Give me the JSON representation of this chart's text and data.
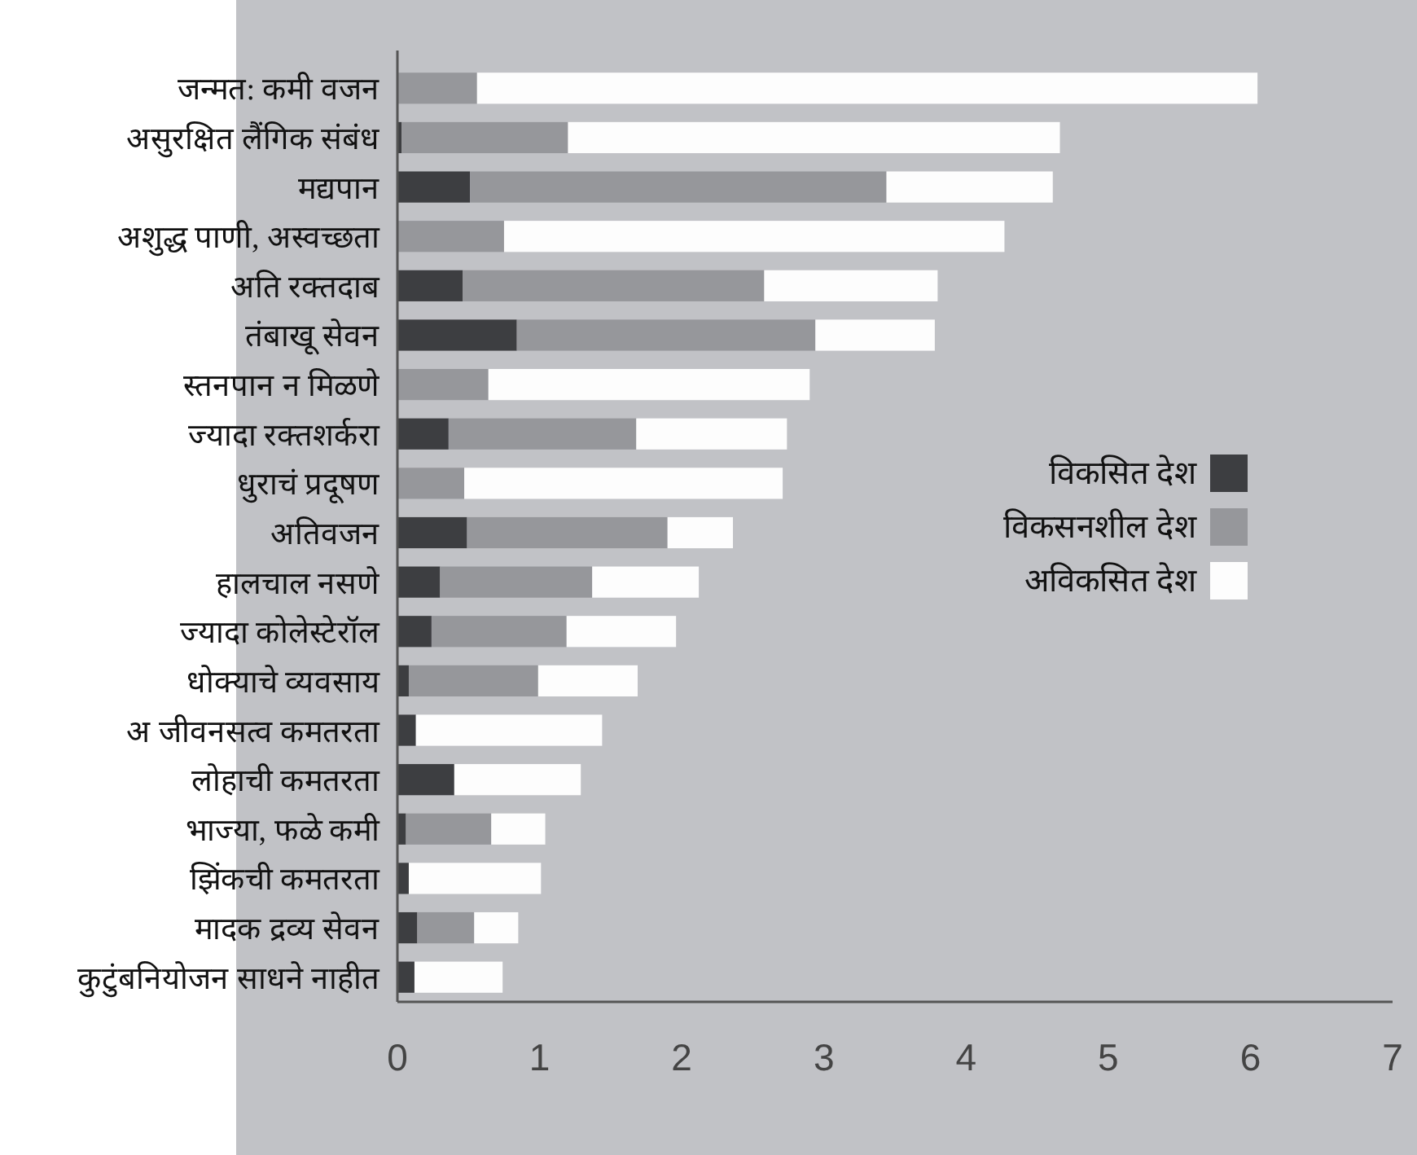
{
  "chart_data": {
    "type": "bar",
    "orientation": "horizontal",
    "stacked": true,
    "categories": [
      "जन्मत: कमी वजन",
      "असुरक्षित लैंगिक संबंध",
      "मद्यपान",
      "अशुद्ध पाणी, अस्वच्छता",
      "अति रक्तदाब",
      "तंबाखू सेवन",
      "स्तनपान न मिळणे",
      "ज्यादा रक्तशर्करा",
      "धुराचं प्रदूषण",
      "अतिवजन",
      "हालचाल नसणे",
      "ज्यादा कोलेस्टेरॉल",
      "धोक्याचे व्यवसाय",
      "अ जीवनसत्व कमतरता",
      "लोहाची कमतरता",
      "भाज्या, फळे कमी",
      "झिंकची कमतरता",
      "मादक द्रव्य सेवन",
      "कुटुंबनियोजन साधने नाहीत"
    ],
    "series": [
      {
        "name": "विकसित देश",
        "color": "#3d3e41",
        "values": [
          0,
          0.03,
          0.51,
          0,
          0.46,
          0.84,
          0,
          0.36,
          0,
          0.49,
          0.3,
          0.24,
          0.08,
          0.13,
          0.4,
          0.06,
          0.08,
          0.14,
          0.12
        ]
      },
      {
        "name": "विकसनशील देश",
        "color": "#96979b",
        "values": [
          0.56,
          1.17,
          2.93,
          0.75,
          2.12,
          2.1,
          0.64,
          1.32,
          0.47,
          1.41,
          1.07,
          0.95,
          0.91,
          0,
          0,
          0.6,
          0,
          0.4,
          0
        ]
      },
      {
        "name": "अविकसित देश",
        "color": "#fdfdfd",
        "values": [
          5.49,
          3.46,
          1.17,
          3.52,
          1.22,
          0.84,
          2.26,
          1.06,
          2.24,
          0.46,
          0.75,
          0.77,
          0.7,
          1.31,
          0.89,
          0.38,
          0.93,
          0.31,
          0.62
        ]
      }
    ],
    "xlim": [
      0,
      7
    ],
    "xticks": [
      0,
      1,
      2,
      3,
      4,
      5,
      6,
      7
    ],
    "grid": false,
    "legend": "right"
  }
}
